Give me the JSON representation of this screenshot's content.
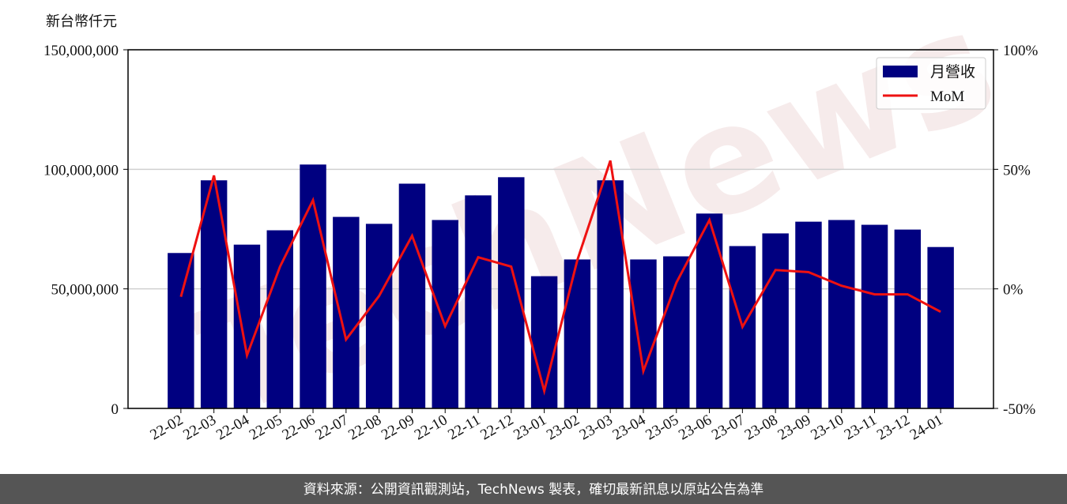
{
  "chart_data": {
    "type": "bar-line",
    "y_label": "新台幣仟元",
    "watermark": "TechNews",
    "footer": "資料來源：公開資訊觀測站，TechNews 製表，確切最新訊息以原站公告為準",
    "categories": [
      "22-02",
      "22-03",
      "22-04",
      "22-05",
      "22-06",
      "22-07",
      "22-08",
      "22-09",
      "22-10",
      "22-11",
      "22-12",
      "23-01",
      "23-02",
      "23-03",
      "23-04",
      "23-05",
      "23-06",
      "23-07",
      "23-08",
      "23-09",
      "23-10",
      "23-11",
      "23-12",
      "24-01"
    ],
    "series": [
      {
        "name": "月營收",
        "type": "bar",
        "color": "#000080",
        "values": [
          65000000,
          95400000,
          68500000,
          74500000,
          102000000,
          80100000,
          77200000,
          94000000,
          78800000,
          89100000,
          96700000,
          55300000,
          62300000,
          95400000,
          62300000,
          63600000,
          81500000,
          67900000,
          73200000,
          78100000,
          78800000,
          76800000,
          74800000,
          67500000
        ]
      },
      {
        "name": "MoM",
        "type": "line",
        "axis": "y2",
        "color": "#ee1111",
        "values": [
          -3.3,
          47.4,
          -27.8,
          9.3,
          37.1,
          -21.2,
          -3.0,
          22.2,
          -15.6,
          13.2,
          9.3,
          -42.7,
          11.9,
          53.6,
          -34.4,
          2.6,
          28.8,
          -15.9,
          7.9,
          7.0,
          1.3,
          -2.3,
          -2.3,
          -9.6
        ]
      }
    ],
    "ylim": [
      0,
      150000000
    ],
    "yticks": [
      0,
      {
        "value": 50000000,
        "label": "50,000,000"
      },
      {
        "value": 100000000,
        "label": "100,000,000"
      },
      {
        "value": 150000000,
        "label": "150,000,000"
      }
    ],
    "y2lim": [
      -50,
      100
    ],
    "y2ticks": [
      {
        "value": -50,
        "label": "-50%"
      },
      {
        "value": 0,
        "label": "0%"
      },
      {
        "value": 50,
        "label": "50%"
      },
      {
        "value": 100,
        "label": "100%"
      }
    ],
    "grid": true,
    "legend": "upper right"
  }
}
